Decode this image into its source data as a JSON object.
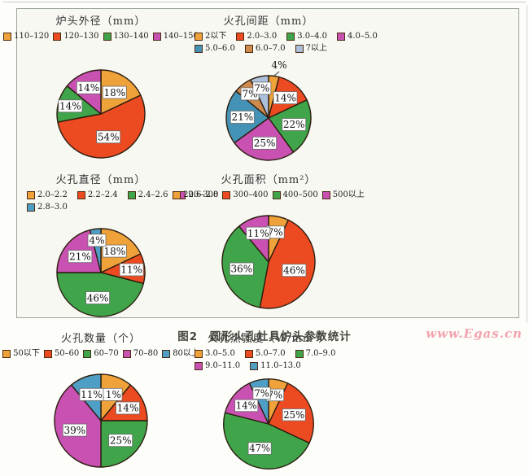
{
  "figure": {
    "caption": "图2　圆形火孔灶具炉头参数统计",
    "watermark": "www.Egas.cn"
  },
  "palette": {
    "orange": "#F0A23A",
    "red": "#EC4A21",
    "green": "#3FA44A",
    "magenta": "#C851B2",
    "teal_blue": "#4492B6",
    "tan": "#CF8A4E",
    "light_grey_blue": "#ACC0DC",
    "steel_blue": "#4E9EC6",
    "slice_outline": "#2b1d0e",
    "frame_border": "#9aa49c",
    "watermark_pink": "#f2a3ae"
  },
  "chart_data": [
    {
      "type": "pie",
      "id": "burner-outer-diameter",
      "title": "炉头外径（mm）",
      "legend_rows": [
        [
          0,
          1,
          2,
          3
        ]
      ],
      "slices": [
        {
          "label": "110–120",
          "value": 18,
          "pct": "18%",
          "color": "#F0A23A",
          "label_r": 0.58
        },
        {
          "label": "120–130",
          "value": 54,
          "pct": "54%",
          "color": "#EC4A21",
          "label_r": 0.55
        },
        {
          "label": "130–140",
          "value": 14,
          "pct": "14%",
          "color": "#3FA44A",
          "label_r": 0.72
        },
        {
          "label": "140–150",
          "value": 14,
          "pct": "14%",
          "color": "#C851B2",
          "label_r": 0.66
        }
      ]
    },
    {
      "type": "pie",
      "id": "fire-hole-spacing",
      "title": "火孔间距（mm）",
      "legend_rows": [
        [
          0,
          1,
          2,
          3
        ],
        [
          4,
          5,
          6
        ]
      ],
      "slices": [
        {
          "label": "2以下",
          "value": 4,
          "pct": "4%",
          "color": "#F0A23A",
          "outside": true
        },
        {
          "label": "2.0–3.0",
          "value": 14,
          "pct": "14%",
          "color": "#EC4A21",
          "label_r": 0.62
        },
        {
          "label": "3.0–4.0",
          "value": 22,
          "pct": "22%",
          "color": "#3FA44A",
          "label_r": 0.62
        },
        {
          "label": "4.0–5.0",
          "value": 25,
          "pct": "25%",
          "color": "#C851B2",
          "label_r": 0.6
        },
        {
          "label": "5.0–6.0",
          "value": 21,
          "pct": "21%",
          "color": "#4492B6",
          "label_r": 0.62
        },
        {
          "label": "6.0–7.0",
          "value": 7,
          "pct": "7%",
          "color": "#CF8A4E",
          "label_r": 0.72
        },
        {
          "label": "7以上",
          "value": 7,
          "pct": "7%",
          "color": "#ACC0DC",
          "label_r": 0.72
        }
      ]
    },
    {
      "type": "pie",
      "id": "fire-hole-diameter",
      "title": "火孔直径（mm）",
      "legend_rows": [
        [
          0,
          1,
          2,
          3
        ],
        [
          4
        ]
      ],
      "slices": [
        {
          "label": "2.0–2.2",
          "value": 18,
          "pct": "18%",
          "color": "#F0A23A",
          "label_r": 0.58
        },
        {
          "label": "2.2–2.4",
          "value": 11,
          "pct": "11%",
          "color": "#EC4A21",
          "label_r": 0.7
        },
        {
          "label": "2.4–2.6",
          "value": 46,
          "pct": "46%",
          "color": "#3FA44A",
          "label_r": 0.58
        },
        {
          "label": "2.6–2.8",
          "value": 21,
          "pct": "21%",
          "color": "#C851B2",
          "label_r": 0.6
        },
        {
          "label": "2.8–3.0",
          "value": 4,
          "pct": "4%",
          "color": "#4E9EC6",
          "label_r": 0.74
        }
      ]
    },
    {
      "type": "pie",
      "id": "fire-hole-area",
      "title": "火孔面积（mm²）",
      "legend_rows": [
        [
          0,
          1,
          2,
          3
        ]
      ],
      "slices": [
        {
          "label": "200–300",
          "value": 7,
          "pct": "7%",
          "color": "#F0A23A",
          "label_r": 0.66
        },
        {
          "label": "300–400",
          "value": 46,
          "pct": "46%",
          "color": "#EC4A21",
          "label_r": 0.58
        },
        {
          "label": "400–500",
          "value": 36,
          "pct": "36%",
          "color": "#3FA44A",
          "label_r": 0.6
        },
        {
          "label": "500以上",
          "value": 11,
          "pct": "11%",
          "color": "#C851B2",
          "label_r": 0.66
        }
      ]
    },
    {
      "type": "pie",
      "id": "fire-hole-count",
      "title": "火孔数量（个）",
      "legend_rows": [
        [
          0,
          1,
          2,
          3,
          4
        ]
      ],
      "slices": [
        {
          "label": "50以下",
          "value": 11,
          "pct": "11%",
          "color": "#F0A23A",
          "label_r": 0.6
        },
        {
          "label": "50–60",
          "value": 14,
          "pct": "14%",
          "color": "#EC4A21",
          "label_r": 0.64
        },
        {
          "label": "60–70",
          "value": 25,
          "pct": "25%",
          "color": "#3FA44A",
          "label_r": 0.6
        },
        {
          "label": "70–80",
          "value": 39,
          "pct": "39%",
          "color": "#C851B2",
          "label_r": 0.6
        },
        {
          "label": "80以上",
          "value": 11,
          "pct": "11%",
          "color": "#4E9EC6",
          "label_r": 0.6
        }
      ]
    },
    {
      "type": "pie",
      "id": "fire-hole-heat-intensity",
      "title": "火孔热强度（W/mm²）",
      "legend_rows": [
        [
          0,
          1,
          2
        ],
        [
          3,
          4
        ]
      ],
      "slices": [
        {
          "label": "3.0–5.0",
          "value": 7,
          "pct": "7%",
          "color": "#F0A23A",
          "label_r": 0.66
        },
        {
          "label": "5.0–7.0",
          "value": 25,
          "pct": "25%",
          "color": "#EC4A21",
          "label_r": 0.6
        },
        {
          "label": "7.0–9.0",
          "value": 47,
          "pct": "47%",
          "color": "#3FA44A",
          "label_r": 0.58
        },
        {
          "label": "9.0–11.0",
          "value": 14,
          "pct": "14%",
          "color": "#C851B2",
          "label_r": 0.64
        },
        {
          "label": "11.0–13.0",
          "value": 7,
          "pct": "7%",
          "color": "#4E9EC6",
          "label_r": 0.7
        }
      ]
    }
  ]
}
